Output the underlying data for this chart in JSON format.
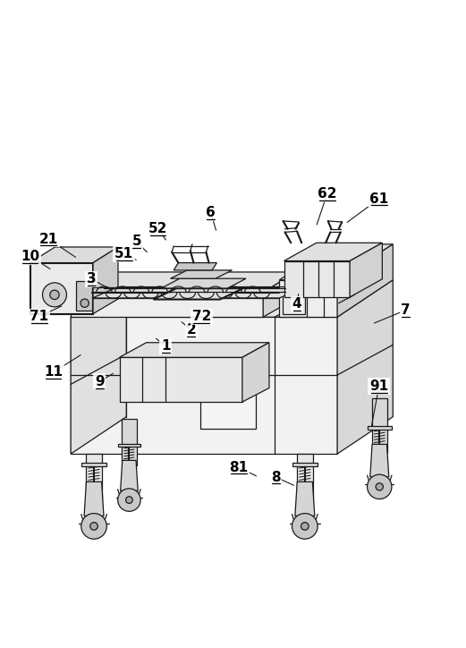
{
  "bg_color": "#ffffff",
  "lc": "#1a1a1a",
  "lw": 0.9,
  "tlw": 1.5,
  "label_fs": 11,
  "fig_w": 5.21,
  "fig_h": 7.24,
  "labels": {
    "1": [
      0.355,
      0.452,
      0.33,
      0.472
    ],
    "2": [
      0.41,
      0.487,
      0.385,
      0.508
    ],
    "3": [
      0.195,
      0.597,
      0.24,
      0.572
    ],
    "4": [
      0.638,
      0.543,
      0.642,
      0.57
    ],
    "5": [
      0.292,
      0.678,
      0.318,
      0.651
    ],
    "51": [
      0.265,
      0.651,
      0.296,
      0.636
    ],
    "52": [
      0.338,
      0.706,
      0.358,
      0.677
    ],
    "6": [
      0.452,
      0.74,
      0.465,
      0.697
    ],
    "61": [
      0.815,
      0.77,
      0.742,
      0.716
    ],
    "62": [
      0.703,
      0.78,
      0.679,
      0.709
    ],
    "7": [
      0.873,
      0.53,
      0.8,
      0.5
    ],
    "8": [
      0.592,
      0.17,
      0.636,
      0.15
    ],
    "81": [
      0.512,
      0.191,
      0.555,
      0.17
    ],
    "9": [
      0.212,
      0.376,
      0.246,
      0.396
    ],
    "91": [
      0.815,
      0.366,
      0.798,
      0.275
    ],
    "10": [
      0.062,
      0.646,
      0.11,
      0.616
    ],
    "11": [
      0.112,
      0.396,
      0.176,
      0.436
    ],
    "21": [
      0.102,
      0.683,
      0.165,
      0.641
    ],
    "71": [
      0.082,
      0.516,
      0.135,
      0.541
    ],
    "72": [
      0.432,
      0.516,
      0.415,
      0.531
    ]
  }
}
